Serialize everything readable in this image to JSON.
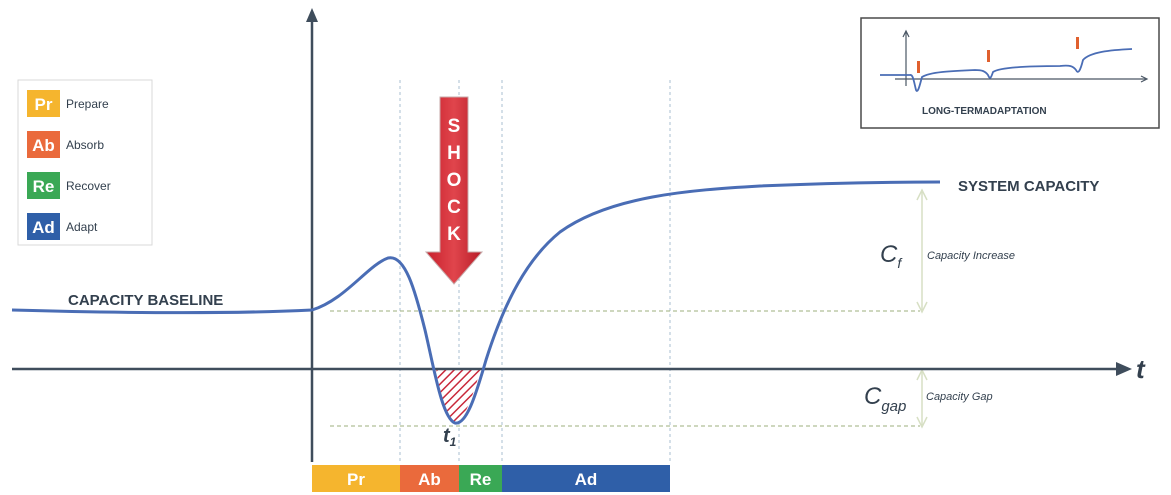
{
  "legend": {
    "items": [
      {
        "abbr": "Pr",
        "label": "Prepare",
        "color": "#f5b52e"
      },
      {
        "abbr": "Ab",
        "label": "Absorb",
        "color": "#ea6a3c"
      },
      {
        "abbr": "Re",
        "label": "Recover",
        "color": "#3aa855"
      },
      {
        "abbr": "Ad",
        "label": "Adapt",
        "color": "#2f5fa8"
      }
    ]
  },
  "shock_letters": [
    "S",
    "H",
    "O",
    "C",
    "K"
  ],
  "labels": {
    "capacity_baseline": "CAPACITY BASELINE",
    "system_capacity": "SYSTEM CAPACITY",
    "cf_symbol": "C",
    "cf_subscript": "f",
    "capacity_increase": "Capacity Increase",
    "cgap_symbol": "C",
    "cgap_subscript": "gap",
    "capacity_gap": "Capacity Gap",
    "t1_symbol": "t",
    "t1_subscript": "1",
    "time_axis": "t"
  },
  "inset": {
    "caption": "LONG-TERMADAPTATION"
  },
  "phase_bar": [
    {
      "abbr": "Pr",
      "color": "#f5b52e"
    },
    {
      "abbr": "Ab",
      "color": "#ea6a3c"
    },
    {
      "abbr": "Re",
      "color": "#3aa855"
    },
    {
      "abbr": "Ad",
      "color": "#2f5fa8"
    }
  ],
  "colors": {
    "curve": "#4a6db5",
    "axis": "#3f4d5c",
    "shock_arrow": "#d8323a",
    "gap_hatch": "#c8283a"
  }
}
